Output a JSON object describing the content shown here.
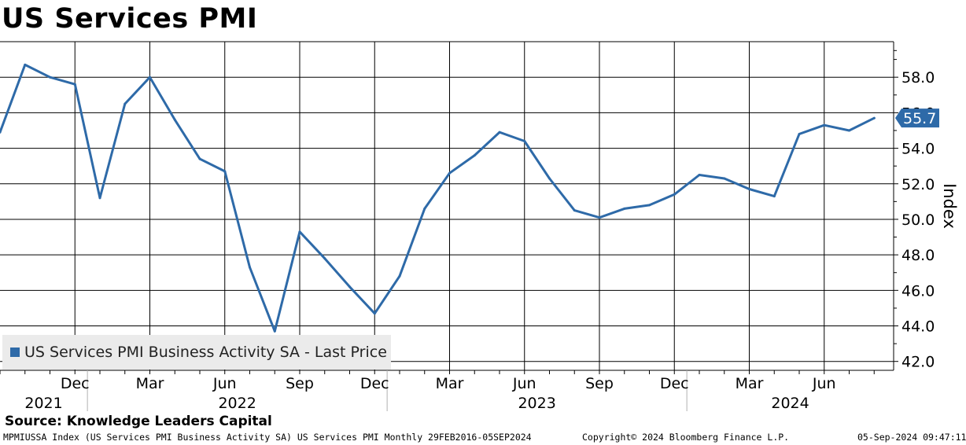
{
  "title": "US Services PMI",
  "source": "Source: Knowledge Leaders Capital",
  "footer": {
    "left": "MPMIUSSA Index (US Services PMI Business Activity SA) US Services PMI  Monthly 29FEB2016-05SEP2024",
    "center": "Copyright© 2024 Bloomberg Finance L.P.",
    "right": "05-Sep-2024 09:47:11"
  },
  "colors": {
    "line": "#2e6aa8",
    "grid": "#000000",
    "legend_bg": "#ebebeb"
  },
  "chart_data": {
    "type": "line",
    "title": "US Services PMI",
    "ylabel": "Index",
    "ylim": [
      41.5,
      60.0
    ],
    "yticks": [
      "42.0",
      "44.0",
      "46.0",
      "48.0",
      "50.0",
      "52.0",
      "54.0",
      "56.0",
      "58.0"
    ],
    "legend": {
      "placement": "bottom-left",
      "label": "US Services PMI Business Activity SA - Last Price"
    },
    "last_value_label": "55.7",
    "month_ticks": [
      {
        "label": "Dec",
        "date": "2021-12"
      },
      {
        "label": "Mar",
        "date": "2022-03"
      },
      {
        "label": "Jun",
        "date": "2022-06"
      },
      {
        "label": "Sep",
        "date": "2022-09"
      },
      {
        "label": "Dec",
        "date": "2022-12"
      },
      {
        "label": "Mar",
        "date": "2023-03"
      },
      {
        "label": "Jun",
        "date": "2023-06"
      },
      {
        "label": "Sep",
        "date": "2023-09"
      },
      {
        "label": "Dec",
        "date": "2023-12"
      },
      {
        "label": "Mar",
        "date": "2024-03"
      },
      {
        "label": "Jun",
        "date": "2024-06"
      }
    ],
    "year_labels": [
      "2021",
      "2022",
      "2023",
      "2024"
    ],
    "series": [
      {
        "name": "US Services PMI Business Activity SA - Last Price",
        "points": [
          {
            "x": "2021-09",
            "y": 54.9
          },
          {
            "x": "2021-10",
            "y": 58.7
          },
          {
            "x": "2021-11",
            "y": 58.0
          },
          {
            "x": "2021-12",
            "y": 57.6
          },
          {
            "x": "2022-01",
            "y": 51.2
          },
          {
            "x": "2022-02",
            "y": 56.5
          },
          {
            "x": "2022-03",
            "y": 58.0
          },
          {
            "x": "2022-04",
            "y": 55.6
          },
          {
            "x": "2022-05",
            "y": 53.4
          },
          {
            "x": "2022-06",
            "y": 52.7
          },
          {
            "x": "2022-07",
            "y": 47.3
          },
          {
            "x": "2022-08",
            "y": 43.7
          },
          {
            "x": "2022-09",
            "y": 49.3
          },
          {
            "x": "2022-10",
            "y": 47.8
          },
          {
            "x": "2022-11",
            "y": 46.2
          },
          {
            "x": "2022-12",
            "y": 44.7
          },
          {
            "x": "2023-01",
            "y": 46.8
          },
          {
            "x": "2023-02",
            "y": 50.6
          },
          {
            "x": "2023-03",
            "y": 52.6
          },
          {
            "x": "2023-04",
            "y": 53.6
          },
          {
            "x": "2023-05",
            "y": 54.9
          },
          {
            "x": "2023-06",
            "y": 54.4
          },
          {
            "x": "2023-07",
            "y": 52.3
          },
          {
            "x": "2023-08",
            "y": 50.5
          },
          {
            "x": "2023-09",
            "y": 50.1
          },
          {
            "x": "2023-10",
            "y": 50.6
          },
          {
            "x": "2023-11",
            "y": 50.8
          },
          {
            "x": "2023-12",
            "y": 51.4
          },
          {
            "x": "2024-01",
            "y": 52.5
          },
          {
            "x": "2024-02",
            "y": 52.3
          },
          {
            "x": "2024-03",
            "y": 51.7
          },
          {
            "x": "2024-04",
            "y": 51.3
          },
          {
            "x": "2024-05",
            "y": 54.8
          },
          {
            "x": "2024-06",
            "y": 55.3
          },
          {
            "x": "2024-07",
            "y": 55.0
          },
          {
            "x": "2024-08",
            "y": 55.7
          }
        ]
      }
    ]
  }
}
